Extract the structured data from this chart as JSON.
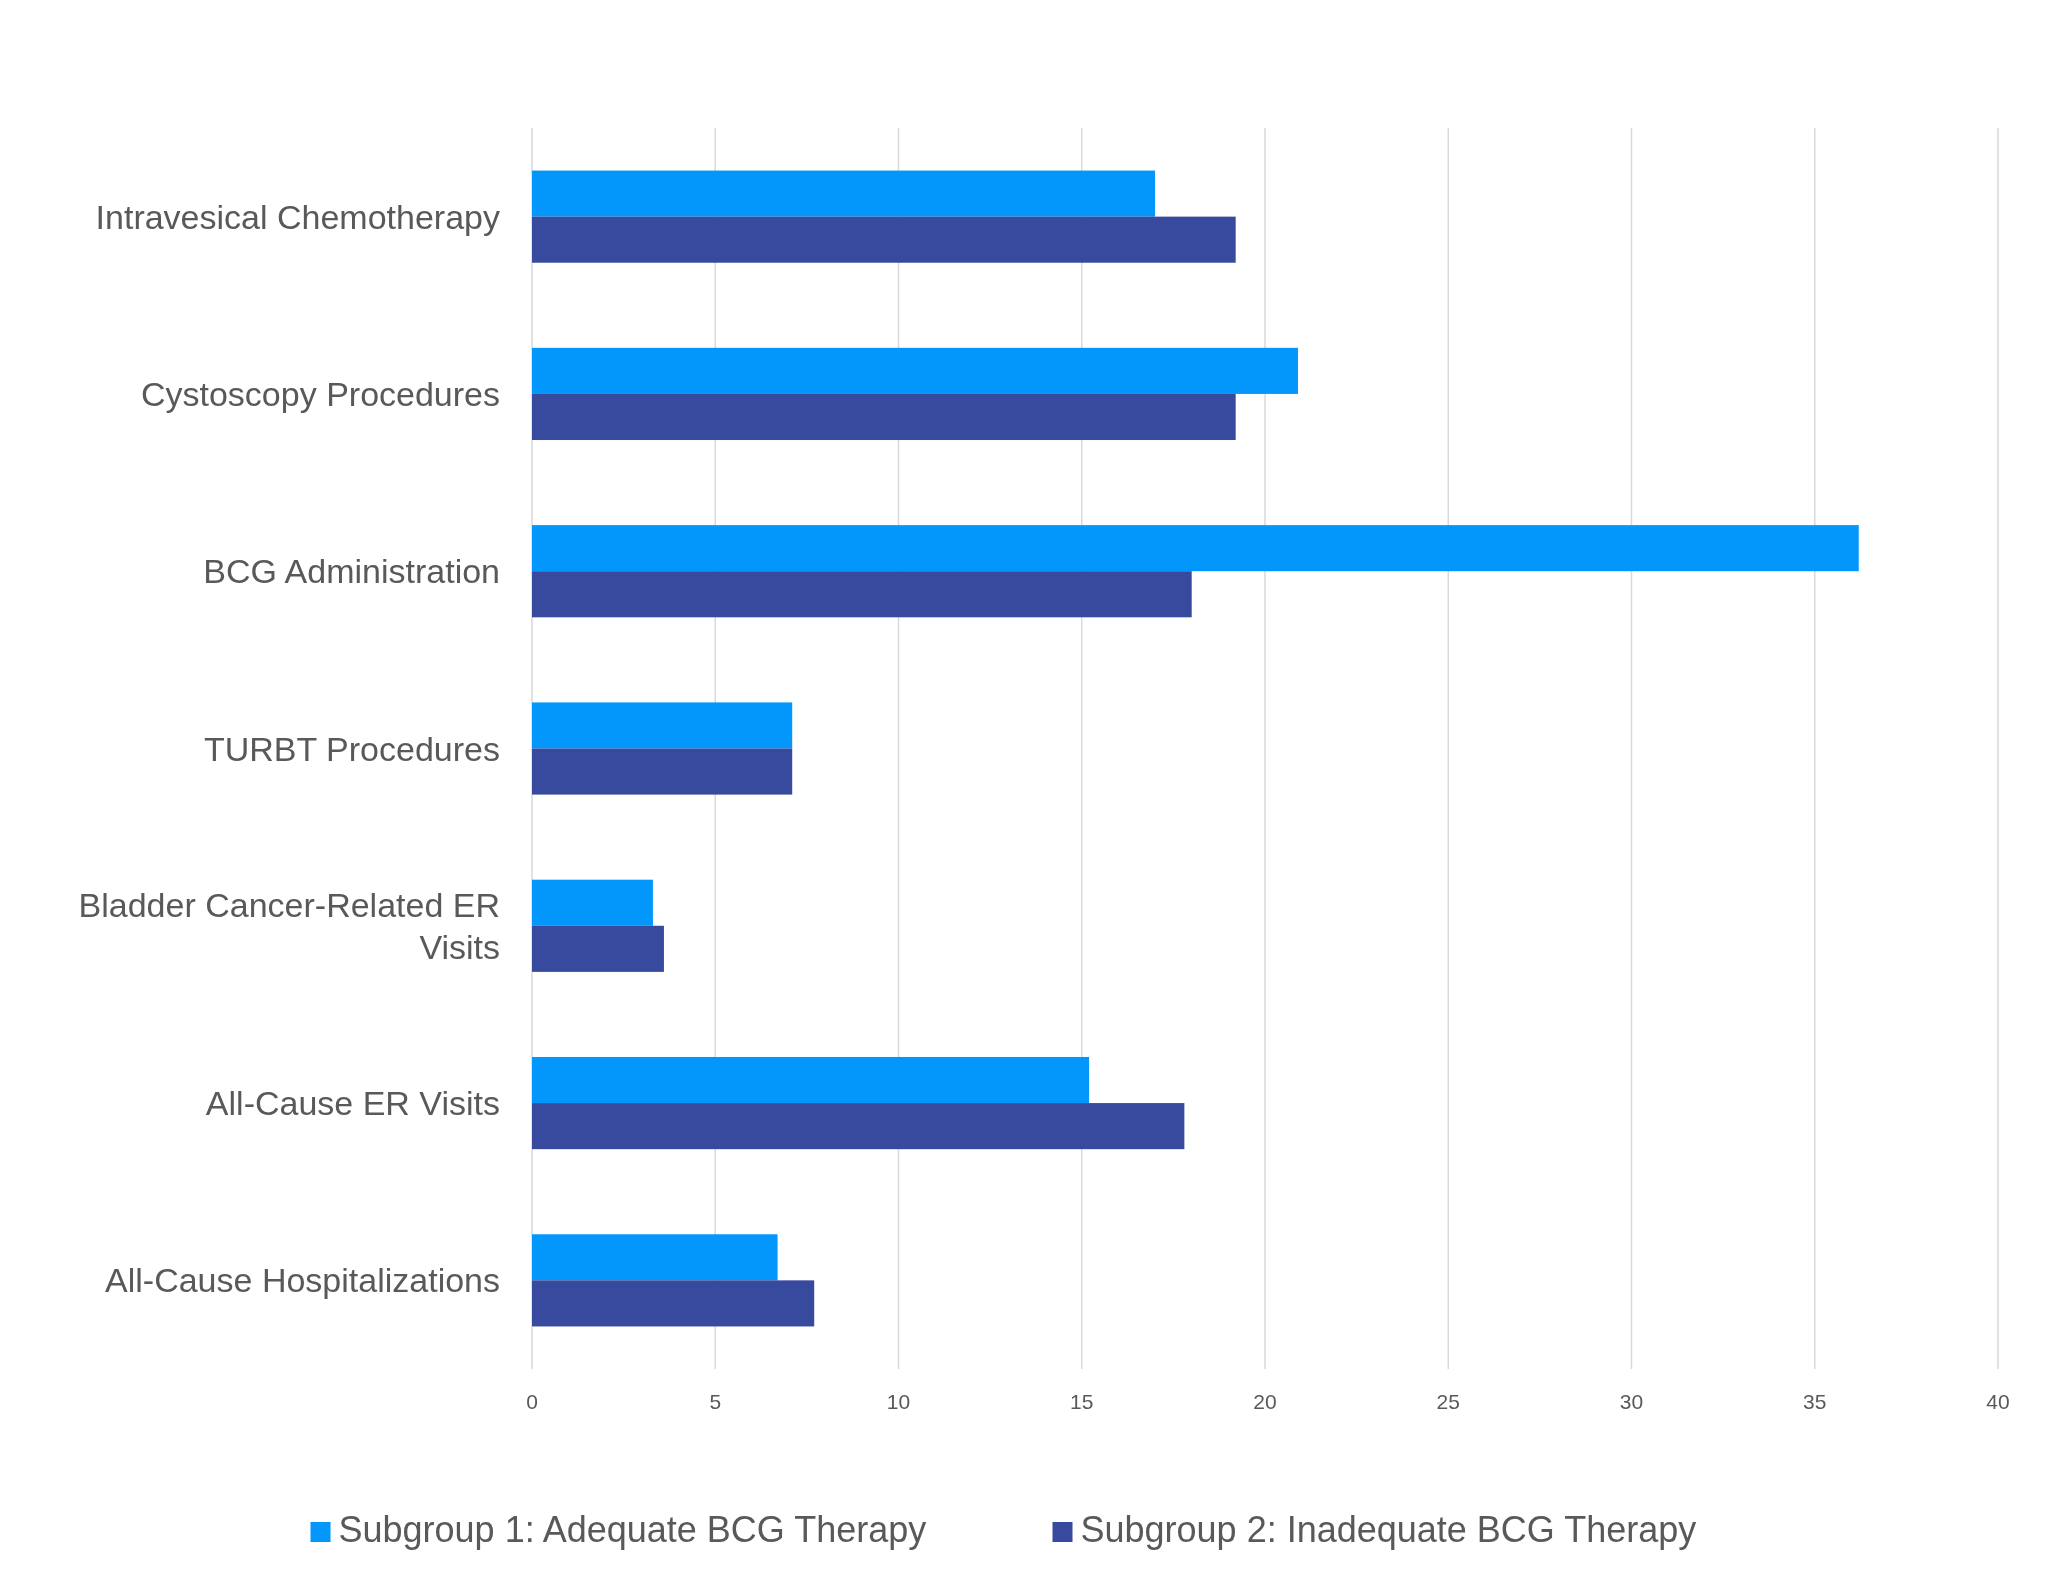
{
  "chart_data": {
    "type": "bar",
    "orientation": "horizontal",
    "categories": [
      "Intravesical Chemotherapy",
      "Cystoscopy Procedures",
      "BCG Administration",
      "TURBT Procedures",
      "Bladder Cancer-Related ER Visits",
      "All-Cause ER Visits",
      "All-Cause Hospitalizations"
    ],
    "series": [
      {
        "name": "Subgroup 1: Adequate BCG Therapy",
        "color": "#0397fc",
        "values": [
          17.0,
          20.9,
          36.2,
          7.1,
          3.3,
          15.2,
          6.7
        ]
      },
      {
        "name": "Subgroup 2: Inadequate BCG Therapy",
        "color": "#374a9e",
        "values": [
          19.2,
          19.2,
          18.0,
          7.1,
          3.6,
          17.8,
          7.7
        ]
      }
    ],
    "xlim": [
      0,
      40
    ],
    "xticks": [
      0,
      5,
      10,
      15,
      20,
      25,
      30,
      35,
      40
    ],
    "grid": "x",
    "legend": "bottom"
  }
}
